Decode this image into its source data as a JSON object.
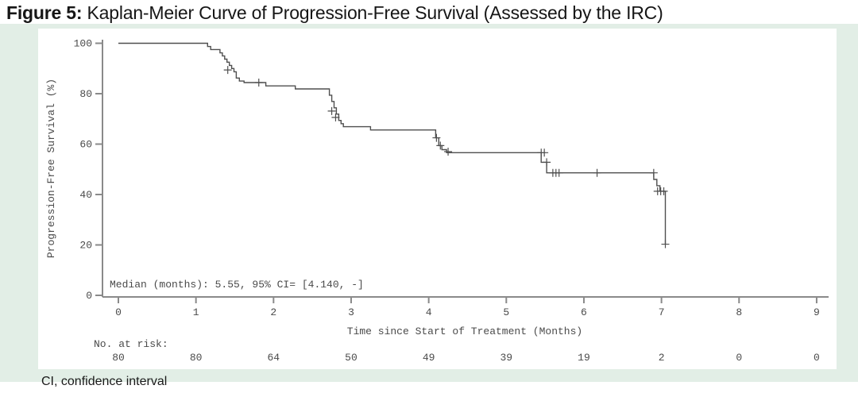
{
  "figure": {
    "title_prefix": "Figure 5:",
    "title_text": " Kaplan-Meier Curve of Progression-Free Survival (Assessed by the IRC)",
    "footnote": "CI, confidence interval"
  },
  "colors": {
    "panel_bg": "#e2eee6",
    "plot_bg": "#ffffff",
    "curve": "#4f4f4f",
    "axis": "#8a8a8a",
    "plot_text": "#4a4a4a"
  },
  "chart_data": {
    "type": "line",
    "subtype": "kaplan-meier-step",
    "title": "",
    "xlabel": "Time since Start of Treatment (Months)",
    "ylabel": "Progression-Free Survival (%)",
    "xlim": [
      0,
      9
    ],
    "ylim": [
      0,
      100
    ],
    "xticks": [
      0,
      1,
      2,
      3,
      4,
      5,
      6,
      7,
      8,
      9
    ],
    "yticks": [
      0,
      20,
      40,
      60,
      80,
      100
    ],
    "grid": false,
    "legend": "none",
    "annotation": "Median (months): 5.55, 95% CI= [4.140, -]",
    "median_months": 5.55,
    "ci95_lower": 4.14,
    "ci95_upper": null,
    "risk_label": "No. at risk:",
    "risk_counts": [
      80,
      80,
      64,
      50,
      49,
      39,
      19,
      2,
      0,
      0
    ],
    "steps": [
      [
        0,
        100
      ],
      [
        1.15,
        100
      ],
      [
        1.15,
        98.7
      ],
      [
        1.19,
        98.7
      ],
      [
        1.19,
        97.5
      ],
      [
        1.31,
        97.5
      ],
      [
        1.31,
        96.2
      ],
      [
        1.34,
        96.2
      ],
      [
        1.34,
        95.0
      ],
      [
        1.37,
        95.0
      ],
      [
        1.37,
        93.7
      ],
      [
        1.4,
        93.7
      ],
      [
        1.4,
        92.5
      ],
      [
        1.43,
        92.5
      ],
      [
        1.43,
        91.2
      ],
      [
        1.46,
        91.2
      ],
      [
        1.46,
        90.0
      ],
      [
        1.49,
        90.0
      ],
      [
        1.49,
        88.7
      ],
      [
        1.52,
        88.7
      ],
      [
        1.52,
        86.2
      ],
      [
        1.56,
        86.2
      ],
      [
        1.56,
        85.0
      ],
      [
        1.62,
        85.0
      ],
      [
        1.62,
        84.4
      ],
      [
        1.9,
        84.4
      ],
      [
        1.9,
        83.1
      ],
      [
        2.28,
        83.1
      ],
      [
        2.28,
        81.9
      ],
      [
        2.72,
        81.9
      ],
      [
        2.72,
        79.4
      ],
      [
        2.75,
        79.4
      ],
      [
        2.75,
        76.9
      ],
      [
        2.78,
        76.9
      ],
      [
        2.78,
        74.4
      ],
      [
        2.81,
        74.4
      ],
      [
        2.81,
        71.9
      ],
      [
        2.84,
        71.9
      ],
      [
        2.84,
        69.4
      ],
      [
        2.87,
        69.4
      ],
      [
        2.87,
        68.1
      ],
      [
        2.9,
        68.1
      ],
      [
        2.9,
        66.9
      ],
      [
        3.25,
        66.9
      ],
      [
        3.25,
        65.6
      ],
      [
        4.09,
        65.6
      ],
      [
        4.09,
        62.5
      ],
      [
        4.13,
        62.5
      ],
      [
        4.13,
        59.4
      ],
      [
        4.17,
        59.4
      ],
      [
        4.17,
        57.8
      ],
      [
        4.23,
        57.8
      ],
      [
        4.23,
        56.6
      ],
      [
        5.45,
        56.6
      ],
      [
        5.45,
        52.8
      ],
      [
        5.52,
        52.8
      ],
      [
        5.52,
        48.6
      ],
      [
        6.9,
        48.6
      ],
      [
        6.9,
        46.0
      ],
      [
        6.94,
        46.0
      ],
      [
        6.94,
        43.5
      ],
      [
        6.98,
        43.5
      ],
      [
        6.98,
        41.3
      ],
      [
        7.05,
        41.3
      ],
      [
        7.05,
        20.3
      ]
    ],
    "censors": [
      [
        1.41,
        89.4
      ],
      [
        1.81,
        84.4
      ],
      [
        2.75,
        73.1
      ],
      [
        2.8,
        70.6
      ],
      [
        4.1,
        62.5
      ],
      [
        4.15,
        59.4
      ],
      [
        4.25,
        57.0
      ],
      [
        5.45,
        56.6
      ],
      [
        5.49,
        56.6
      ],
      [
        5.52,
        52.8
      ],
      [
        5.6,
        48.6
      ],
      [
        5.64,
        48.6
      ],
      [
        5.68,
        48.6
      ],
      [
        6.17,
        48.6
      ],
      [
        6.9,
        48.6
      ],
      [
        6.95,
        41.3
      ],
      [
        6.99,
        41.3
      ],
      [
        7.03,
        41.3
      ],
      [
        7.05,
        20.3
      ]
    ]
  }
}
